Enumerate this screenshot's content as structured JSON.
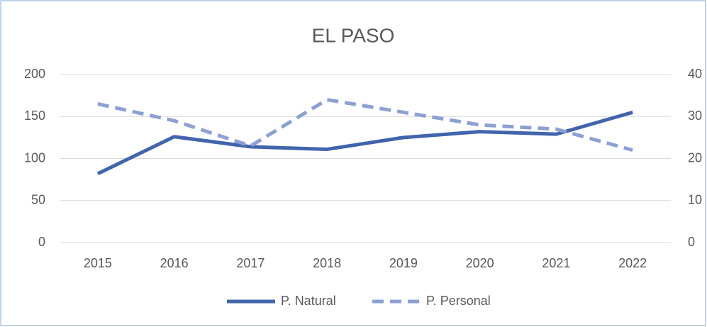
{
  "chart_data": {
    "type": "line",
    "title": "EL PASO",
    "categories": [
      "2015",
      "2016",
      "2017",
      "2018",
      "2019",
      "2020",
      "2021",
      "2022"
    ],
    "series": [
      {
        "name": "P. Natural",
        "color": "#4264ad",
        "dash": false,
        "values": [
          82,
          126,
          114,
          111,
          125,
          132,
          129,
          155
        ]
      },
      {
        "name": "P. Personal",
        "color": "#8da0d3",
        "dash": true,
        "axis": "y2",
        "values": [
          33,
          29,
          23,
          34,
          31,
          28,
          27,
          22
        ]
      }
    ],
    "ylim": [
      0,
      200
    ],
    "yticks": [
      0,
      50,
      100,
      150,
      200
    ],
    "y2lim": [
      0,
      40
    ],
    "y2ticks": [
      0,
      10,
      20,
      30,
      40
    ],
    "grid": true,
    "legend": "bottom"
  }
}
